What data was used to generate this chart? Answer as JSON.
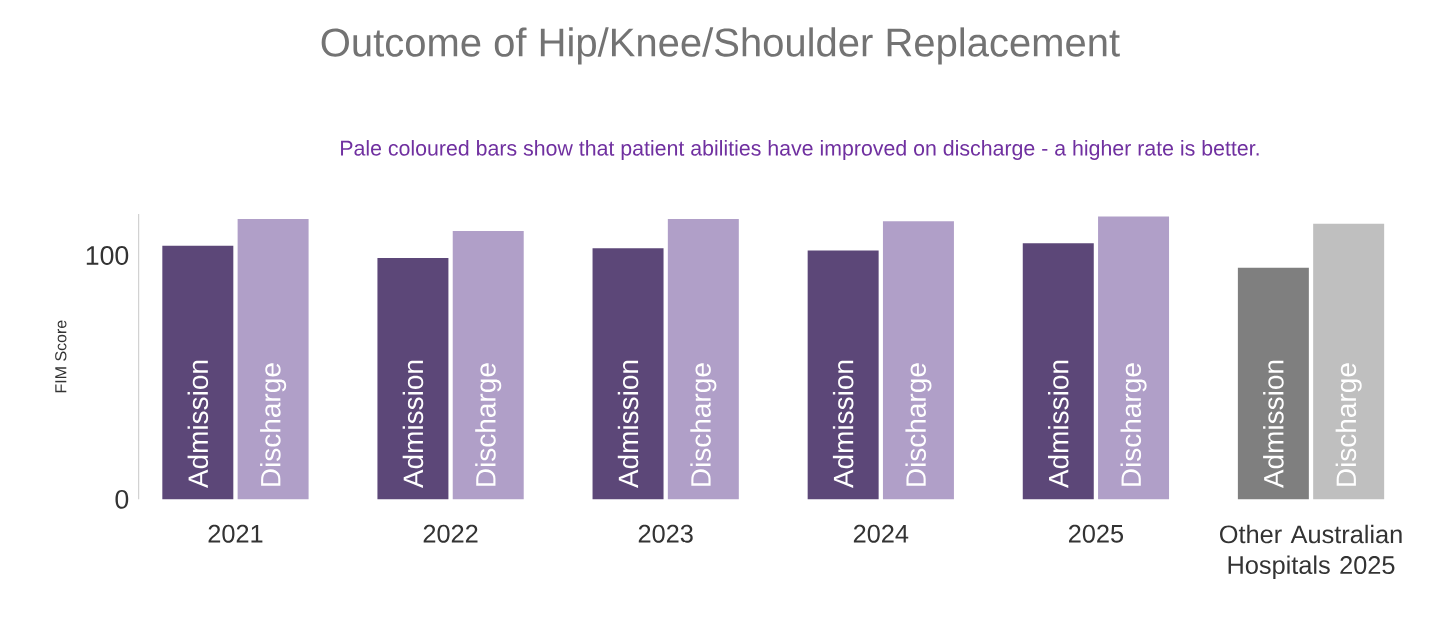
{
  "chart_data": {
    "type": "bar",
    "title": "Outcome of Hip/Knee/Shoulder Replacement",
    "annotations": [
      "Pale coloured bars show that patient abilities have improved on discharge - a higher rate is better."
    ],
    "ylabel": "FIM Score",
    "categories": [
      "2021",
      "2022",
      "2023",
      "2024",
      "2025",
      "Other Australian Hospitals 2025"
    ],
    "series": [
      {
        "name": "Admission",
        "colors": [
          "#5c4778",
          "#5c4778",
          "#5c4778",
          "#5c4778",
          "#5c4778",
          "#7f7f7f"
        ],
        "values": [
          104,
          99,
          103,
          102,
          105,
          95
        ]
      },
      {
        "name": "Discharge",
        "colors": [
          "#b09fc8",
          "#b09fc8",
          "#b09fc8",
          "#b09fc8",
          "#b09fc8",
          "#bfbfbf"
        ],
        "values": [
          115,
          110,
          115,
          114,
          116,
          113
        ]
      }
    ],
    "ylim": [
      0,
      117
    ],
    "yticks": [
      0,
      100
    ],
    "grid": false,
    "legend": false
  }
}
